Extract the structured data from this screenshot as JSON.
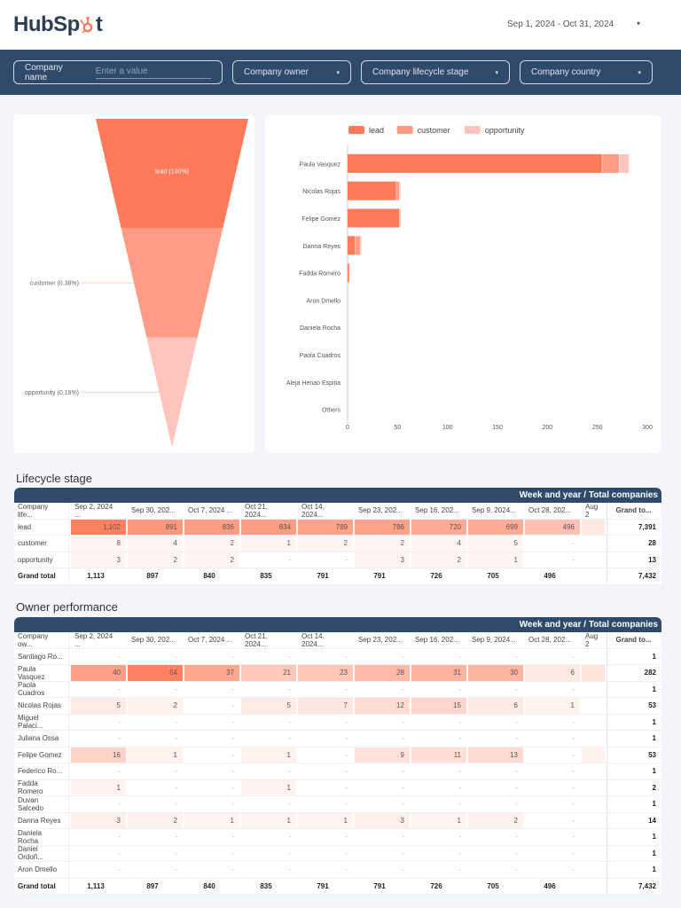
{
  "header": {
    "logo_text_a": "HubSp",
    "logo_text_b": "t",
    "date_range": "Sep 1, 2024 - Oct 31, 2024",
    "date_caret": "▾"
  },
  "filters": {
    "company_name_label": "Company name",
    "company_name_placeholder": "Enter a value",
    "owner": "Company owner",
    "lifecycle": "Company lifecycle stage",
    "country": "Company country",
    "caret": "▾"
  },
  "colors": {
    "accent": "#ff7a59",
    "navy": "#2f4a6b",
    "lead": "#ff7a59",
    "customer": "#ff9c86",
    "opportunity": "#ffc4bb"
  },
  "chart_data": [
    {
      "type": "funnel",
      "stages": [
        {
          "name": "lead",
          "label": "lead (100%)",
          "percent": 100
        },
        {
          "name": "customer",
          "label": "customer (0.38%)",
          "percent": 0.38
        },
        {
          "name": "opportunity",
          "label": "opportunity (0.18%)",
          "percent": 0.18
        }
      ]
    },
    {
      "type": "bar",
      "orientation": "horizontal",
      "stacked": true,
      "legend": [
        "lead",
        "customer",
        "opportunity"
      ],
      "legend_position": "top",
      "categories": [
        "Paula Vasquez",
        "Nicolas Rojas",
        "Felipe Gomez",
        "Danna Reyes",
        "Fadda Romero",
        "Aron Dmello",
        "Daniela Rocha",
        "Paola Cuadros",
        "Aleja Henao Espitia",
        "Others"
      ],
      "series": [
        {
          "name": "lead",
          "values": [
            255,
            49,
            52,
            8,
            2,
            0,
            0,
            0,
            0,
            0
          ]
        },
        {
          "name": "customer",
          "values": [
            17,
            3,
            1,
            5,
            0,
            0,
            0,
            0,
            0,
            0
          ]
        },
        {
          "name": "opportunity",
          "values": [
            10,
            1,
            0,
            1,
            0,
            0,
            0,
            0,
            0,
            0
          ]
        }
      ],
      "xlim": [
        0,
        300
      ],
      "xticks": [
        "0",
        "50",
        "100",
        "150",
        "200",
        "250",
        "300"
      ]
    }
  ],
  "lifecycle": {
    "title": "Lifecycle stage",
    "band": "Week and year / Total companies",
    "columns": [
      "Company life...",
      "Sep 2, 2024 ...",
      "Sep 30, 202...",
      "Oct 7, 2024 ...",
      "Oct 21, 2024...",
      "Oct 14, 2024...",
      "Sep 23, 202...",
      "Sep 16, 202...",
      "Sep 9, 2024...",
      "Oct 28, 202...",
      "Aug 2",
      "Grand to..."
    ],
    "rows": [
      {
        "name": "lead",
        "cells": [
          "1,102",
          "891",
          "836",
          "834",
          "789",
          "786",
          "720",
          "699",
          "496",
          ""
        ],
        "heat": [
          1102,
          891,
          836,
          834,
          789,
          786,
          720,
          699,
          496,
          120
        ],
        "total": "7,391"
      },
      {
        "name": "customer",
        "cells": [
          "8",
          "4",
          "2",
          "1",
          "2",
          "2",
          "4",
          "5",
          "-",
          ""
        ],
        "heat": [
          8,
          4,
          2,
          1,
          2,
          2,
          4,
          5,
          0,
          0
        ],
        "total": "28"
      },
      {
        "name": "opportunity",
        "cells": [
          "3",
          "2",
          "2",
          "-",
          "-",
          "3",
          "2",
          "1",
          "-",
          ""
        ],
        "heat": [
          3,
          2,
          2,
          0,
          0,
          3,
          2,
          1,
          0,
          0
        ],
        "total": "13"
      }
    ],
    "total_row": {
      "name": "Grand total",
      "cells": [
        "1,113",
        "897",
        "840",
        "835",
        "791",
        "791",
        "726",
        "705",
        "496",
        ""
      ],
      "total": "7,432"
    }
  },
  "owners": {
    "title": "Owner performance",
    "band": "Week and year / Total companies",
    "columns": [
      "Company ow...",
      "Sep 2, 2024 ...",
      "Sep 30, 202...",
      "Oct 7, 2024 ...",
      "Oct 21, 2024...",
      "Oct 14, 2024...",
      "Sep 23, 202...",
      "Sep 16, 202...",
      "Sep 9, 2024...",
      "Oct 28, 202...",
      "Aug 2",
      "Grand to..."
    ],
    "rows": [
      {
        "name": "Santiago Ro...",
        "cells": [
          "-",
          "-",
          "-",
          "-",
          "-",
          "-",
          "-",
          "-",
          "-",
          ""
        ],
        "heat": [
          0,
          0,
          0,
          0,
          0,
          0,
          0,
          0,
          0,
          0
        ],
        "total": "1"
      },
      {
        "name": "Paula Vasquez",
        "cells": [
          "40",
          "54",
          "37",
          "21",
          "23",
          "28",
          "31",
          "30",
          "6",
          ""
        ],
        "heat": [
          40,
          54,
          37,
          21,
          23,
          28,
          31,
          30,
          6,
          8
        ],
        "total": "282"
      },
      {
        "name": "Paola Cuadros",
        "cells": [
          "-",
          "-",
          "-",
          "-",
          "-",
          "-",
          "-",
          "-",
          "-",
          ""
        ],
        "heat": [
          0,
          0,
          0,
          0,
          0,
          0,
          0,
          0,
          0,
          0
        ],
        "total": "1"
      },
      {
        "name": "Nicolas Rojas",
        "cells": [
          "5",
          "2",
          "-",
          "5",
          "7",
          "12",
          "15",
          "6",
          "1",
          ""
        ],
        "heat": [
          5,
          2,
          0,
          5,
          7,
          12,
          15,
          6,
          1,
          0
        ],
        "total": "53"
      },
      {
        "name": "Miguel Palaci...",
        "cells": [
          "-",
          "-",
          "-",
          "-",
          "-",
          "-",
          "-",
          "-",
          "-",
          ""
        ],
        "heat": [
          0,
          0,
          0,
          0,
          0,
          0,
          0,
          0,
          0,
          0
        ],
        "total": "1"
      },
      {
        "name": "Juliana Ossa",
        "cells": [
          "-",
          "-",
          "-",
          "-",
          "-",
          "-",
          "-",
          "-",
          "-",
          ""
        ],
        "heat": [
          0,
          0,
          0,
          0,
          0,
          0,
          0,
          0,
          0,
          0
        ],
        "total": "1"
      },
      {
        "name": "Felipe Gomez",
        "cells": [
          "16",
          "1",
          "-",
          "1",
          "-",
          "9",
          "11",
          "13",
          "-",
          ""
        ],
        "heat": [
          16,
          1,
          0,
          1,
          0,
          9,
          11,
          13,
          0,
          2
        ],
        "total": "53"
      },
      {
        "name": "Federico Ro...",
        "cells": [
          "-",
          "-",
          "-",
          "-",
          "-",
          "-",
          "-",
          "-",
          "-",
          ""
        ],
        "heat": [
          0,
          0,
          0,
          0,
          0,
          0,
          0,
          0,
          0,
          0
        ],
        "total": "1"
      },
      {
        "name": "Fadda Romero",
        "cells": [
          "1",
          "-",
          "-",
          "1",
          "-",
          "-",
          "-",
          "-",
          "-",
          ""
        ],
        "heat": [
          1,
          0,
          0,
          1,
          0,
          0,
          0,
          0,
          0,
          0
        ],
        "total": "2"
      },
      {
        "name": "Duvan Salcedo",
        "cells": [
          "-",
          "-",
          "-",
          "-",
          "-",
          "-",
          "-",
          "-",
          "-",
          ""
        ],
        "heat": [
          0,
          0,
          0,
          0,
          0,
          0,
          0,
          0,
          0,
          0
        ],
        "total": "1"
      },
      {
        "name": "Danna Reyes",
        "cells": [
          "3",
          "2",
          "1",
          "1",
          "1",
          "3",
          "1",
          "2",
          "-",
          ""
        ],
        "heat": [
          3,
          2,
          1,
          1,
          1,
          3,
          1,
          2,
          0,
          0
        ],
        "total": "14"
      },
      {
        "name": "Daniela Rocha",
        "cells": [
          "-",
          "-",
          "-",
          "-",
          "-",
          "-",
          "-",
          "-",
          "-",
          ""
        ],
        "heat": [
          0,
          0,
          0,
          0,
          0,
          0,
          0,
          0,
          0,
          0
        ],
        "total": "1"
      },
      {
        "name": "Daniel Ordoñ...",
        "cells": [
          "-",
          "-",
          "-",
          "-",
          "-",
          "-",
          "-",
          "-",
          "-",
          ""
        ],
        "heat": [
          0,
          0,
          0,
          0,
          0,
          0,
          0,
          0,
          0,
          0
        ],
        "total": "1"
      },
      {
        "name": "Aron Dmello",
        "cells": [
          "-",
          "-",
          "-",
          "-",
          "-",
          "-",
          "-",
          "-",
          "-",
          ""
        ],
        "heat": [
          0,
          0,
          0,
          0,
          0,
          0,
          0,
          0,
          0,
          0
        ],
        "total": "1"
      }
    ],
    "total_row": {
      "name": "Grand total",
      "cells": [
        "1,113",
        "897",
        "840",
        "835",
        "791",
        "791",
        "726",
        "705",
        "496",
        ""
      ],
      "total": "7,432"
    }
  }
}
